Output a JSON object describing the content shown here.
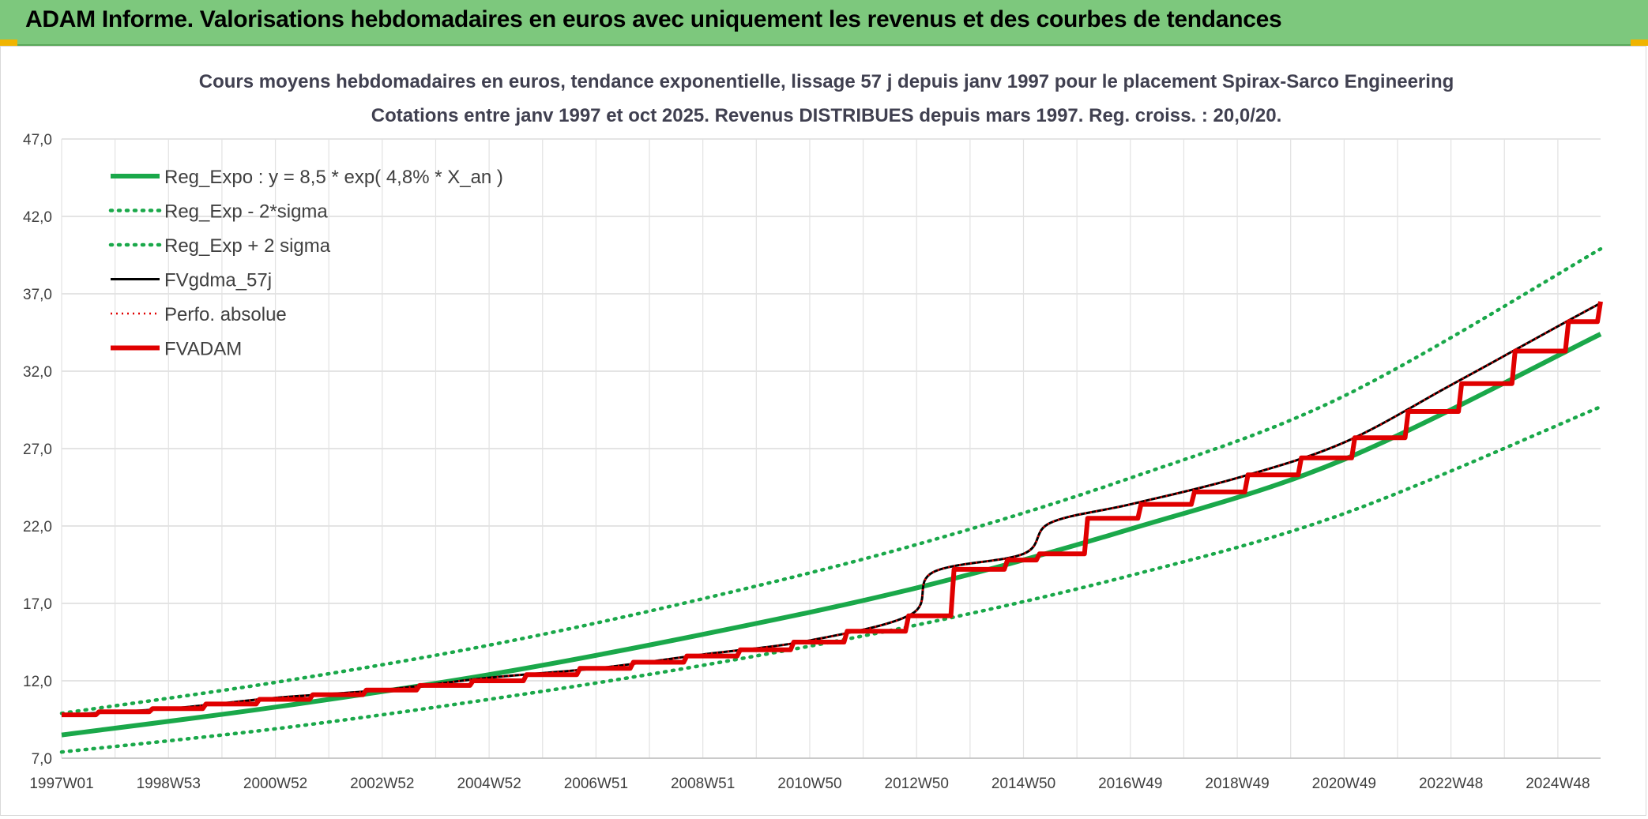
{
  "header": {
    "title": "ADAM Informe. Valorisations hebdomadaires en euros avec uniquement les revenus et des courbes de tendances"
  },
  "chart_data": {
    "type": "line",
    "title": "Cours moyens hebdomadaires en euros, tendance exponentielle, lissage 57 j depuis janv 1997 pour le placement Spirax-Sarco Engineering",
    "subtitle": "Cotations entre janv 1997 et oct 2025. Revenus DISTRIBUES depuis mars 1997. Reg. croiss. : 20,0/20.",
    "xlabel": "",
    "ylabel": "",
    "x_range": [
      1997.0,
      2025.8
    ],
    "ylim": [
      7.0,
      47.0
    ],
    "y_ticks": [
      "7,0",
      "12,0",
      "17,0",
      "22,0",
      "27,0",
      "32,0",
      "37,0",
      "42,0",
      "47,0"
    ],
    "x_ticks": [
      {
        "label": "1997W01",
        "year": 1997.0
      },
      {
        "label": "1998W53",
        "year": 1999.0
      },
      {
        "label": "2000W52",
        "year": 2001.0
      },
      {
        "label": "2002W52",
        "year": 2003.0
      },
      {
        "label": "2004W52",
        "year": 2005.0
      },
      {
        "label": "2006W51",
        "year": 2007.0
      },
      {
        "label": "2008W51",
        "year": 2009.0
      },
      {
        "label": "2010W50",
        "year": 2011.0
      },
      {
        "label": "2012W50",
        "year": 2013.0
      },
      {
        "label": "2014W50",
        "year": 2015.0
      },
      {
        "label": "2016W49",
        "year": 2017.0
      },
      {
        "label": "2018W49",
        "year": 2019.0
      },
      {
        "label": "2020W49",
        "year": 2021.0
      },
      {
        "label": "2022W48",
        "year": 2023.0
      },
      {
        "label": "2024W48",
        "year": 2025.0
      }
    ],
    "grid": true,
    "legend_position": "top-left",
    "series": [
      {
        "name": "Reg_Expo : y = 8,5 * exp( 4,8% *  X_an )",
        "color": "#1aa84a",
        "style": "solid",
        "x": [
          1997.0,
          2001.0,
          2005.0,
          2009.0,
          2013.0,
          2017.0,
          2021.0,
          2025.8
        ],
        "values": [
          8.5,
          10.3,
          12.4,
          15.0,
          18.0,
          21.8,
          26.3,
          34.4
        ]
      },
      {
        "name": "Reg_Exp - 2*sigma",
        "color": "#1aa84a",
        "style": "dotted",
        "x": [
          1997.0,
          2001.0,
          2005.0,
          2009.0,
          2013.0,
          2017.0,
          2021.0,
          2025.8
        ],
        "values": [
          7.4,
          8.9,
          10.8,
          13.0,
          15.6,
          18.8,
          22.8,
          29.7
        ]
      },
      {
        "name": "Reg_Exp + 2 sigma",
        "color": "#1aa84a",
        "style": "dotted",
        "x": [
          1997.0,
          2001.0,
          2005.0,
          2009.0,
          2013.0,
          2017.0,
          2021.0,
          2025.8
        ],
        "values": [
          9.9,
          11.9,
          14.3,
          17.3,
          20.8,
          25.1,
          30.4,
          39.9
        ]
      },
      {
        "name": "FVgdma_57j",
        "color": "#000000",
        "style": "solid",
        "x": [
          1997.0,
          1999.0,
          2001.0,
          2003.0,
          2005.0,
          2007.0,
          2009.0,
          2011.0,
          2012.9,
          2013.3,
          2015.0,
          2015.5,
          2017.0,
          2019.0,
          2021.0,
          2023.0,
          2025.0,
          2025.8
        ],
        "values": [
          9.8,
          10.2,
          10.9,
          11.4,
          12.2,
          12.8,
          13.7,
          14.6,
          16.3,
          19.0,
          20.2,
          22.2,
          23.4,
          25.1,
          27.4,
          31.1,
          34.9,
          36.4
        ]
      },
      {
        "name": "Perfo. absolue",
        "color": "#e00000",
        "style": "dotted",
        "x": [
          1997.0,
          1999.0,
          2001.0,
          2003.0,
          2005.0,
          2007.0,
          2009.0,
          2011.0,
          2012.9,
          2013.3,
          2015.0,
          2015.5,
          2017.0,
          2019.0,
          2021.0,
          2023.0,
          2025.0,
          2025.8
        ],
        "values": [
          9.8,
          10.2,
          10.9,
          11.4,
          12.2,
          12.8,
          13.7,
          14.6,
          16.3,
          19.0,
          20.2,
          22.2,
          23.4,
          25.1,
          27.4,
          31.1,
          34.9,
          36.4
        ]
      },
      {
        "name": "FVADAM",
        "color": "#e00000",
        "style": "step",
        "x": [
          1997.0,
          1997.7,
          1998.7,
          1999.7,
          2000.7,
          2001.7,
          2002.7,
          2003.7,
          2004.7,
          2005.7,
          2006.7,
          2007.7,
          2008.7,
          2009.7,
          2010.7,
          2011.7,
          2012.85,
          2013.7,
          2014.7,
          2015.3,
          2016.2,
          2017.2,
          2018.2,
          2019.2,
          2020.2,
          2021.2,
          2022.2,
          2023.2,
          2024.2,
          2025.2,
          2025.8
        ],
        "values": [
          9.8,
          10.0,
          10.2,
          10.5,
          10.8,
          11.1,
          11.4,
          11.7,
          12.0,
          12.4,
          12.8,
          13.2,
          13.6,
          14.0,
          14.5,
          15.2,
          16.2,
          19.2,
          19.8,
          20.2,
          22.5,
          23.4,
          24.2,
          25.3,
          26.4,
          27.7,
          29.4,
          31.2,
          33.3,
          35.2,
          36.5
        ]
      }
    ]
  }
}
